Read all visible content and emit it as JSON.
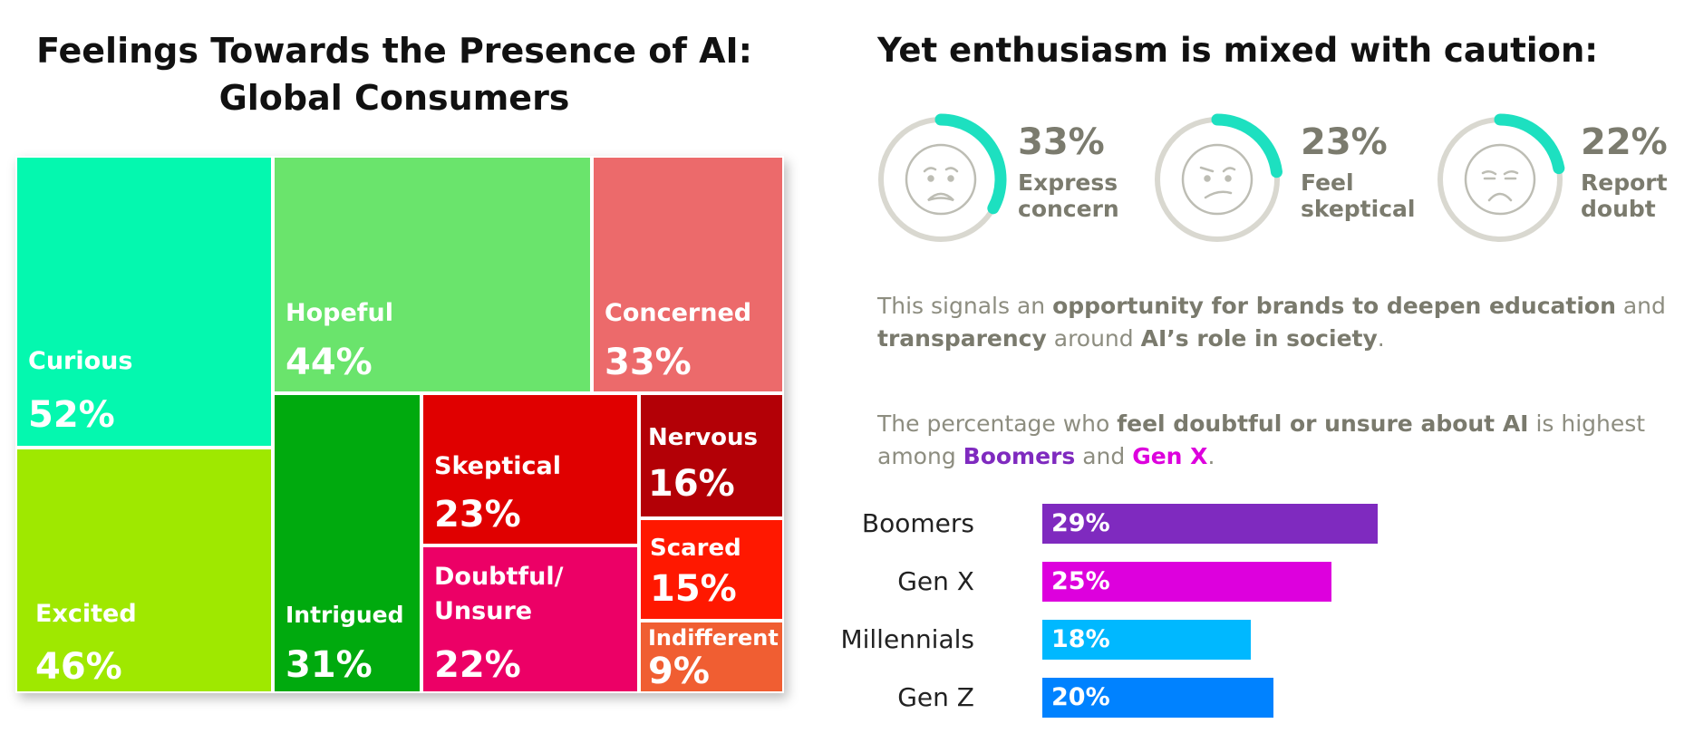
{
  "left_title": [
    "Feelings Towards the Presence of AI:",
    "Global Consumers"
  ],
  "right_title": "Yet enthusiasm is mixed with caution:",
  "treemap": [
    {
      "label": "Curious",
      "value": "52%",
      "color": "#04F8AF"
    },
    {
      "label": "Excited",
      "value": "46%",
      "color": "#9FE800"
    },
    {
      "label": "Hopeful",
      "value": "44%",
      "color": "#6AE46C"
    },
    {
      "label": "Concerned",
      "value": "33%",
      "color": "#EC6A6B"
    },
    {
      "label": "Intrigued",
      "value": "31%",
      "color": "#00AA0E"
    },
    {
      "label": "Skeptical",
      "value": "23%",
      "color": "#E00000"
    },
    {
      "label": "Nervous",
      "value": "16%",
      "color": "#B30006"
    },
    {
      "label": "Doubtful/\nUnsure",
      "value": "22%",
      "color": "#EC0066"
    },
    {
      "label": "Scared",
      "value": "15%",
      "color": "#FF1800"
    },
    {
      "label": "Indifferent",
      "value": "9%",
      "color": "#F05E32"
    }
  ],
  "stats": [
    {
      "value": "33%",
      "caption": "Express\nconcern",
      "face": "worried-face-icon"
    },
    {
      "value": "23%",
      "caption": "Feel\nskeptical",
      "face": "skeptical-face-icon"
    },
    {
      "value": "22%",
      "caption": "Report\ndoubt",
      "face": "frowning-face-icon"
    }
  ],
  "paragraph1": {
    "t1": "This signals an ",
    "b1": "opportunity for brands to deepen education",
    "t2": " and ",
    "b2": "transparency",
    "t3": " around ",
    "b3": "AI’s role in society",
    "t4": "."
  },
  "paragraph2": {
    "t1": "The percentage who ",
    "b1": "feel doubtful or unsure about AI",
    "t2": " is highest among ",
    "b2": "Boomers",
    "t3": " and ",
    "b3": "Gen X",
    "t4": "."
  },
  "accent_colors": {
    "ring_track": "#D9D8D0",
    "ring_arc": "#1DE0C0",
    "boomers": "#7F2ABF",
    "genx": "#DD00DD"
  },
  "chart_data": [
    {
      "type": "treemap",
      "title": "Feelings Towards the Presence of AI: Global Consumers",
      "categories": [
        "Curious",
        "Excited",
        "Hopeful",
        "Concerned",
        "Intrigued",
        "Skeptical",
        "Nervous",
        "Doubtful/Unsure",
        "Scared",
        "Indifferent"
      ],
      "values": [
        52,
        46,
        44,
        33,
        31,
        23,
        16,
        22,
        15,
        9
      ],
      "unit": "%"
    },
    {
      "type": "bar",
      "orientation": "horizontal",
      "categories": [
        "Boomers",
        "Gen X",
        "Millennials",
        "Gen Z"
      ],
      "values": [
        29,
        25,
        18,
        20
      ],
      "labels": [
        "29%",
        "25%",
        "18%",
        "20%"
      ],
      "colors": [
        "#7F2ABF",
        "#DD00DD",
        "#00B8FF",
        "#0082FF"
      ],
      "unit": "%"
    }
  ]
}
